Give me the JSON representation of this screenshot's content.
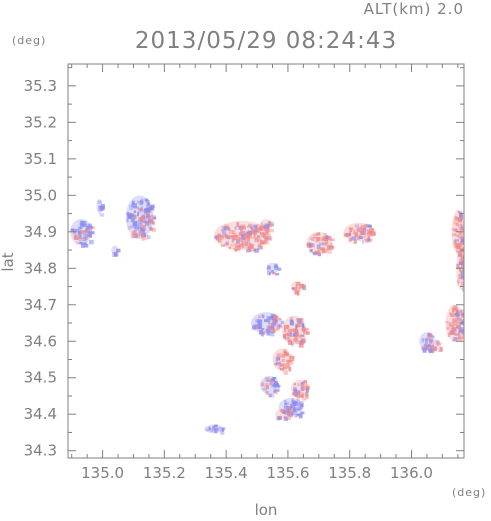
{
  "header": {
    "altitude": "ALT(km) 2.0",
    "timestamp": "2013/05/29 08:24:43",
    "y_unit": "(deg)",
    "x_unit": "(deg)"
  },
  "chart_data": {
    "type": "scatter",
    "title": "2013/05/29 08:24:43",
    "subtitle": "ALT(km) 2.0",
    "xlabel": "lon",
    "ylabel": "lat",
    "xlim": [
      134.888,
      136.17
    ],
    "ylim": [
      34.28,
      35.36
    ],
    "x_ticks": [
      135.0,
      135.2,
      135.4,
      135.6,
      135.8,
      136.0
    ],
    "x_tick_labels": [
      "135.0",
      "135.2",
      "135.4",
      "135.6",
      "135.8",
      "136.0"
    ],
    "y_ticks": [
      34.3,
      34.4,
      34.5,
      34.6,
      34.7,
      34.8,
      34.9,
      35.0,
      35.1,
      35.2,
      35.3
    ],
    "y_tick_labels": [
      "34.3",
      "34.4",
      "34.5",
      "34.6",
      "34.7",
      "34.8",
      "34.9",
      "35.0",
      "35.1",
      "35.2",
      "35.3"
    ],
    "grid": false,
    "colors": {
      "positive": "#f08a8a",
      "negative": "#8a8af0",
      "frame": "#808080"
    },
    "clusters": [
      {
        "lon": 134.93,
        "lat": 34.9,
        "rx": 0.035,
        "ry": 0.035,
        "sign": -1
      },
      {
        "lon": 134.99,
        "lat": 34.97,
        "rx": 0.01,
        "ry": 0.02,
        "sign": -1
      },
      {
        "lon": 135.12,
        "lat": 34.94,
        "rx": 0.045,
        "ry": 0.06,
        "sign": -1
      },
      {
        "lon": 135.04,
        "lat": 34.85,
        "rx": 0.012,
        "ry": 0.012,
        "sign": -1
      },
      {
        "lon": 135.45,
        "lat": 34.89,
        "rx": 0.09,
        "ry": 0.04,
        "sign": 1
      },
      {
        "lon": 135.53,
        "lat": 34.92,
        "rx": 0.02,
        "ry": 0.015,
        "sign": 1
      },
      {
        "lon": 135.7,
        "lat": 34.87,
        "rx": 0.04,
        "ry": 0.03,
        "sign": 1
      },
      {
        "lon": 135.83,
        "lat": 34.9,
        "rx": 0.05,
        "ry": 0.025,
        "sign": 1
      },
      {
        "lon": 135.55,
        "lat": 34.8,
        "rx": 0.02,
        "ry": 0.015,
        "sign": -1
      },
      {
        "lon": 135.63,
        "lat": 34.75,
        "rx": 0.02,
        "ry": 0.015,
        "sign": 1
      },
      {
        "lon": 135.53,
        "lat": 34.65,
        "rx": 0.05,
        "ry": 0.03,
        "sign": -1
      },
      {
        "lon": 135.62,
        "lat": 34.63,
        "rx": 0.04,
        "ry": 0.04,
        "sign": 1
      },
      {
        "lon": 135.58,
        "lat": 34.55,
        "rx": 0.03,
        "ry": 0.03,
        "sign": 1
      },
      {
        "lon": 135.54,
        "lat": 34.48,
        "rx": 0.03,
        "ry": 0.025,
        "sign": -1
      },
      {
        "lon": 135.64,
        "lat": 34.47,
        "rx": 0.03,
        "ry": 0.025,
        "sign": 1
      },
      {
        "lon": 135.61,
        "lat": 34.42,
        "rx": 0.04,
        "ry": 0.025,
        "sign": -1
      },
      {
        "lon": 135.58,
        "lat": 34.4,
        "rx": 0.02,
        "ry": 0.015,
        "sign": 1
      },
      {
        "lon": 136.15,
        "lat": 34.9,
        "rx": 0.02,
        "ry": 0.06,
        "sign": 1
      },
      {
        "lon": 136.16,
        "lat": 34.8,
        "rx": 0.015,
        "ry": 0.06,
        "sign": 1
      },
      {
        "lon": 136.14,
        "lat": 34.65,
        "rx": 0.03,
        "ry": 0.05,
        "sign": 1
      },
      {
        "lon": 136.05,
        "lat": 34.6,
        "rx": 0.025,
        "ry": 0.025,
        "sign": -1
      },
      {
        "lon": 136.08,
        "lat": 34.59,
        "rx": 0.015,
        "ry": 0.015,
        "sign": 1
      },
      {
        "lon": 135.36,
        "lat": 34.36,
        "rx": 0.03,
        "ry": 0.012,
        "sign": -1
      }
    ]
  }
}
